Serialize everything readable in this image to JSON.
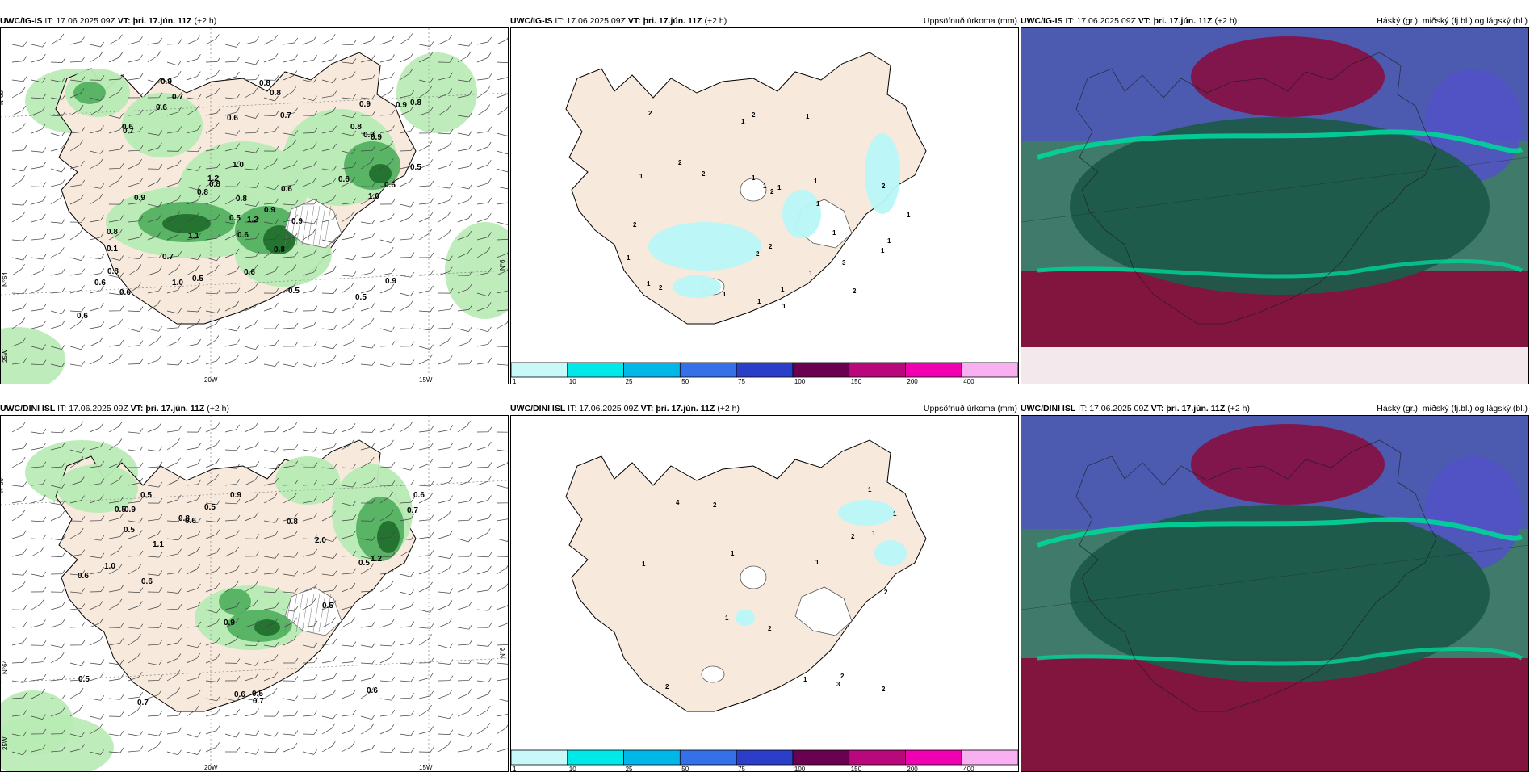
{
  "colors": {
    "land": "#f7e9dc",
    "rain_light": "#b7ebb4",
    "rain_mid": "#4fae5c",
    "rain_dark": "#1f6b2a",
    "accum": "#b8f7f7",
    "cloud_high": "#1e5a4a",
    "cloud_low": "#8a0a3a",
    "cloud_mid": "#5252c8"
  },
  "rows": [
    {
      "model": "UWC/IG-IS",
      "it_label": "IT:",
      "it": "17.06.2025 09Z",
      "vt_label": "VT:",
      "vt": "þri. 17.jún. 11Z",
      "lead": "(+2 h)",
      "left_axes": {
        "lat_top": "N°66",
        "lat_mid": "N°64",
        "lon_left": "20W",
        "lon_right": "15W",
        "lon_w": "25W",
        "lat_right": "N°6"
      },
      "precip_labels": [
        "0.6",
        "0.6",
        "0.8",
        "0.5",
        "0.1",
        "0.7",
        "0.6",
        "1.0",
        "1.1",
        "0.9",
        "0.8",
        "0.7",
        "0.6",
        "0.8",
        "0.5",
        "0.8",
        "0.6",
        "0.9",
        "0.8",
        "0.5",
        "0.8",
        "1.2",
        "0.6",
        "1.0",
        "0.5",
        "0.9",
        "0.7",
        "0.6",
        "0.8",
        "0.9",
        "0.9",
        "0.6",
        "0.6",
        "0.9",
        "0.8",
        "0.7",
        "1.2",
        "0.6",
        "0.8",
        "0.9",
        "0.8",
        "0.6",
        "0.5",
        "0.9",
        "1.0",
        "0.9"
      ],
      "accum_title": "Uppsöfnuð úrkoma (mm)",
      "accum_labels": [
        "1",
        "1",
        "1",
        "1",
        "2",
        "1",
        "1",
        "2",
        "1",
        "2",
        "2",
        "2",
        "1",
        "1",
        "1",
        "2",
        "1",
        "1",
        "1",
        "2",
        "2",
        "2",
        "1",
        "1",
        "2",
        "1",
        "1",
        "3",
        "2",
        "1",
        "1"
      ],
      "cloud_title": "Háský (gr.), miðský (fj.bl.) og lágský (bl.)"
    },
    {
      "model": "UWC/DINI ISL",
      "it_label": "IT:",
      "it": "17.06.2025 09Z",
      "vt_label": "VT:",
      "vt": "þri. 17.jún. 11Z",
      "lead": "(+2 h)",
      "left_axes": {
        "lat_top": "N°66",
        "lat_mid": "N°64",
        "lon_left": "20W",
        "lon_right": "15W",
        "lon_w": "25W",
        "lat_right": "N°6"
      },
      "precip_labels": [
        "0.7",
        "0.6",
        "0.5",
        "0.5",
        "0.5",
        "1.1",
        "0.8",
        "0.7",
        "0.9",
        "0.9",
        "0.6",
        "0.7",
        "0.9",
        "1.0",
        "0.5",
        "1.2",
        "0.5",
        "0.6",
        "2.0",
        "0.6",
        "0.5",
        "0.8",
        "0.5",
        "0.6",
        "0.6",
        "0.5"
      ],
      "accum_title": "Uppsöfnuð úrkoma (mm)",
      "accum_labels": [
        "2",
        "2",
        "2",
        "2",
        "2",
        "1",
        "4",
        "1",
        "1",
        "1",
        "2",
        "1",
        "3",
        "1",
        "2",
        "1",
        "1"
      ],
      "cloud_title": "Háský (gr.), miðský (fj.bl.) og lágský (bl.)"
    }
  ],
  "colorbar": {
    "ticks": [
      "1",
      "10",
      "25",
      "50",
      "75",
      "100",
      "150",
      "200",
      "400"
    ],
    "colors": [
      "#c8f8f8",
      "#00e8e8",
      "#00b8e8",
      "#3470e8",
      "#2a3ec8",
      "#6a0050",
      "#b8087c",
      "#f000b0",
      "#f8b0f0"
    ]
  }
}
